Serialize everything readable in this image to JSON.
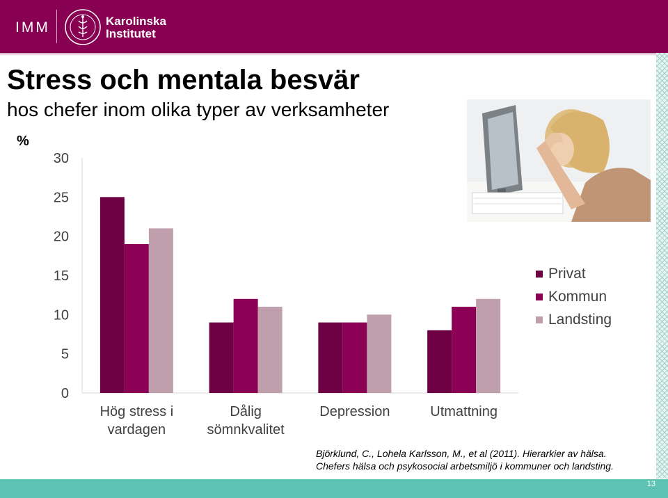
{
  "header": {
    "unit_name": "IMM",
    "logo_name_line1": "Karolinska",
    "logo_name_line2": "Institutet"
  },
  "slide": {
    "title": "Stress och mentala besvär",
    "subtitle": "hos chefer inom olika typer av  verksamheter",
    "unit_label": "%",
    "reference_line1": "Björklund, C., Lohela Karlsson, M., et al (2011). Hierarkier av hälsa.",
    "reference_line2": "Chefers hälsa och psykosocial arbetsmiljö i kommuner och landsting.",
    "page_number": "13"
  },
  "colors": {
    "brand": "#870052",
    "accent_teal": "#5fc3b4",
    "privat": "#6e0044",
    "kommun": "#8c0055",
    "landsting": "#bf9fac"
  },
  "chart_data": {
    "type": "bar",
    "categories": [
      "Hög stress i\nvardagen",
      "Dålig\nsömnkvalitet",
      "Depression",
      "Utmattning"
    ],
    "series": [
      {
        "name": "Privat",
        "values": [
          25,
          9,
          9,
          8
        ]
      },
      {
        "name": "Kommun",
        "values": [
          19,
          12,
          9,
          11
        ]
      },
      {
        "name": "Landsting",
        "values": [
          21,
          11,
          10,
          12
        ]
      }
    ],
    "ylim": [
      0,
      30
    ],
    "yticks": [
      0,
      5,
      10,
      15,
      20,
      25,
      30
    ],
    "ylabel": "%",
    "grid": false,
    "legend_position": "right"
  }
}
